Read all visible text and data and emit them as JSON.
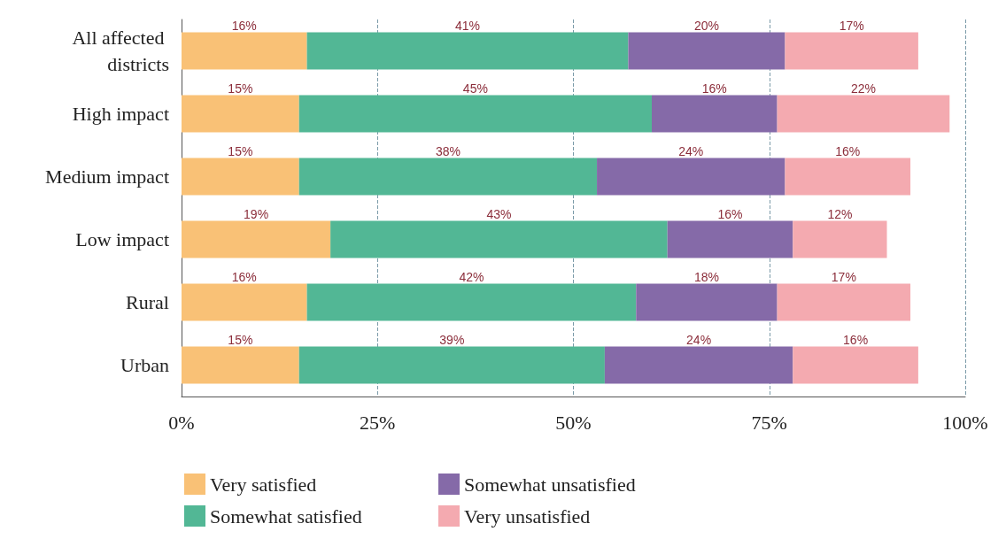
{
  "chart_data": {
    "type": "bar",
    "orientation": "horizontal",
    "stacked": true,
    "categories": [
      "All affected districts",
      "High impact",
      "Medium impact",
      "Low impact",
      "Rural",
      "Urban"
    ],
    "series": [
      {
        "name": "Very satisfied",
        "color": "#f9c176",
        "values": [
          16,
          15,
          15,
          19,
          16,
          15
        ],
        "value_labels": [
          "16%",
          "15%",
          "15%",
          "19%",
          "16%",
          "15%"
        ]
      },
      {
        "name": "Somewhat satisfied",
        "color": "#52b795",
        "values": [
          41,
          45,
          38,
          43,
          42,
          39
        ],
        "value_labels": [
          "41%",
          "45%",
          "38%",
          "43%",
          "42%",
          "39%"
        ]
      },
      {
        "name": "Somewhat unsatisfied",
        "color": "#856aa8",
        "values": [
          20,
          16,
          24,
          16,
          18,
          24
        ],
        "value_labels": [
          "20%",
          "16%",
          "24%",
          "16%",
          "18%",
          "24%"
        ]
      },
      {
        "name": "Very unsatisfied",
        "color": "#f4aab0",
        "values": [
          17,
          22,
          16,
          12,
          17,
          16
        ],
        "value_labels": [
          "17%",
          "22%",
          "16%",
          "12%",
          "17%",
          "16%"
        ]
      }
    ],
    "xlim": [
      0,
      100
    ],
    "xticks": [
      {
        "value": 0,
        "label": "0%"
      },
      {
        "value": 25,
        "label": "25%"
      },
      {
        "value": 50,
        "label": "50%"
      },
      {
        "value": 75,
        "label": "75%"
      },
      {
        "value": 100,
        "label": "100%"
      }
    ],
    "grid": "x",
    "legend": "bottom left"
  }
}
